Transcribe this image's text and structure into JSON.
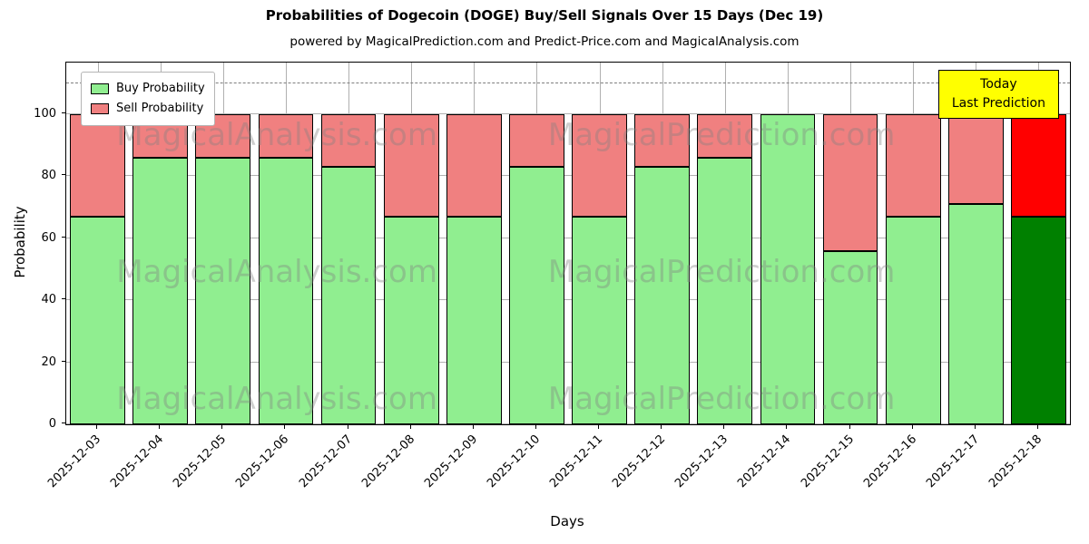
{
  "chart_data": {
    "type": "bar",
    "stacked": true,
    "title": "Probabilities of Dogecoin (DOGE) Buy/Sell Signals Over 15 Days (Dec 19)",
    "subtitle": "powered by MagicalPrediction.com and Predict-Price.com and MagicalAnalysis.com",
    "xlabel": "Days",
    "ylabel": "Probability",
    "categories": [
      "2025-12-03",
      "2025-12-04",
      "2025-12-05",
      "2025-12-06",
      "2025-12-07",
      "2025-12-08",
      "2025-12-09",
      "2025-12-10",
      "2025-12-11",
      "2025-12-12",
      "2025-12-13",
      "2025-12-14",
      "2025-12-15",
      "2025-12-16",
      "2025-12-17",
      "2025-12-18"
    ],
    "series": [
      {
        "name": "Buy Probability",
        "color": "#90EE90",
        "values": [
          67,
          86,
          86,
          86,
          83,
          67,
          67,
          83,
          67,
          83,
          86,
          100,
          56,
          67,
          71,
          67
        ]
      },
      {
        "name": "Sell Probability",
        "color": "#F08080",
        "values": [
          33,
          14,
          14,
          14,
          17,
          33,
          33,
          17,
          33,
          17,
          14,
          0,
          44,
          33,
          29,
          33
        ]
      }
    ],
    "today_colors": {
      "buy": "#008000",
      "sell": "#FF0000"
    },
    "ylim": [
      0,
      116.7
    ],
    "yticks": [
      0,
      20,
      40,
      60,
      80,
      100
    ],
    "dashed_line_y": 110,
    "grid": true,
    "legend_position": "upper-left",
    "annotation": {
      "line1": "Today",
      "line2": "Last Prediction",
      "bg": "#FFFF00"
    },
    "watermarks": {
      "texts": [
        "MagicalAnalysis.com",
        "MagicalPrediction.com"
      ],
      "row_positions_pct": [
        20,
        58,
        93
      ],
      "col_positions_pct": [
        5,
        48
      ]
    }
  }
}
